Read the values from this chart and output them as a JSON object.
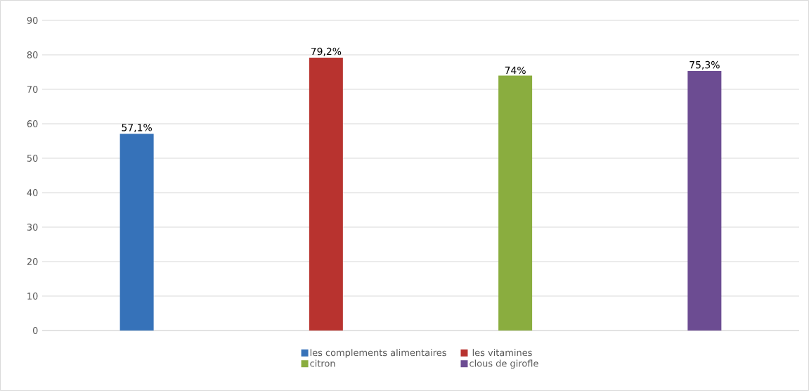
{
  "chart_data": {
    "type": "bar",
    "categories": [
      null,
      null,
      null,
      null
    ],
    "series": [
      {
        "name": "les complements alimentaires",
        "color": "#3672b9",
        "values": [
          57.1,
          null,
          null,
          null
        ],
        "value_labels": [
          "57,1%",
          null,
          null,
          null
        ]
      },
      {
        "name": " les vitamines",
        "color": "#b8332f",
        "values": [
          null,
          79.2,
          null,
          null
        ],
        "value_labels": [
          null,
          "79,2%",
          null,
          null
        ]
      },
      {
        "name": "citron",
        "color": "#8aad3f",
        "values": [
          null,
          null,
          74,
          null
        ],
        "value_labels": [
          null,
          null,
          "74%",
          null
        ]
      },
      {
        "name": "clous de girofle",
        "color": "#6c4c92",
        "values": [
          null,
          null,
          null,
          75.3
        ],
        "value_labels": [
          null,
          null,
          null,
          "75,3%"
        ]
      }
    ],
    "ylim": [
      0,
      90
    ],
    "yticks": [
      0,
      10,
      20,
      30,
      40,
      50,
      60,
      70,
      80,
      90
    ],
    "grid": "y",
    "legend": "bottom",
    "tick_labels": "y"
  }
}
